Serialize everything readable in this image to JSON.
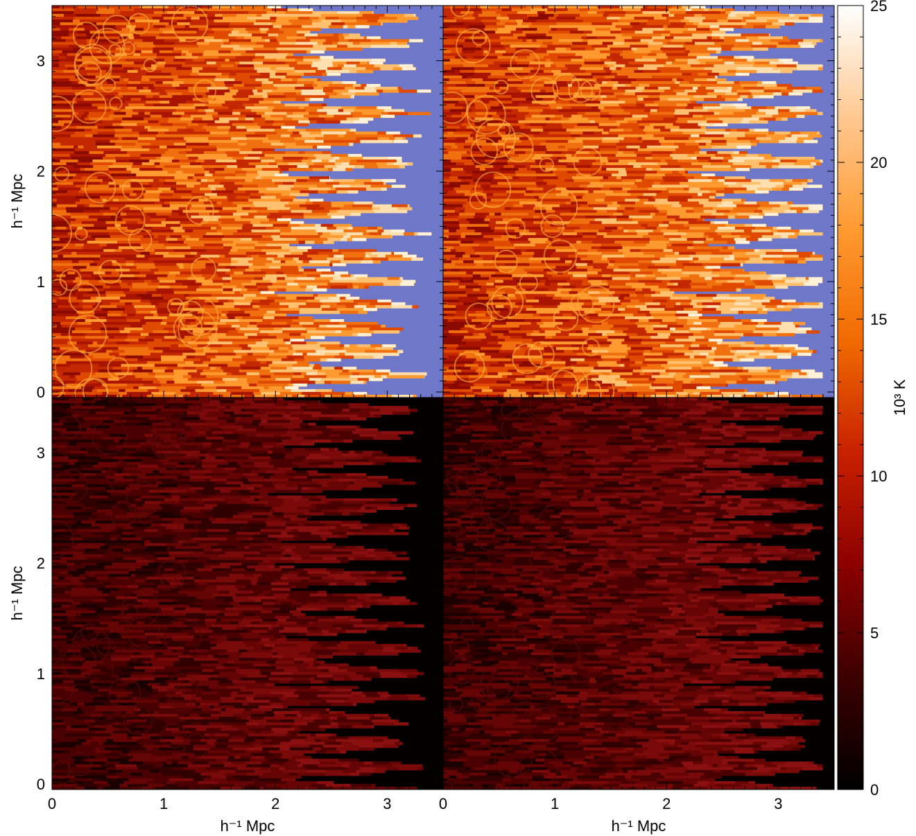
{
  "chart_data": {
    "type": "heatmap",
    "layout": "2x2 panel grid with shared colorbar",
    "panels": [
      {
        "id": "top-left",
        "row": 0,
        "col": 0,
        "colormap": "hot-with-blue-background",
        "xlim": [
          0,
          3.5
        ],
        "ylim": [
          -0.05,
          3.5
        ],
        "xticks_labeled": false,
        "yticks": [
          0,
          1,
          2,
          3
        ]
      },
      {
        "id": "top-right",
        "row": 0,
        "col": 1,
        "colormap": "hot-with-blue-background",
        "xlim": [
          0,
          3.5
        ],
        "ylim": [
          -0.05,
          3.5
        ],
        "xticks_labeled": false,
        "yticks_labeled": false
      },
      {
        "id": "bottom-left",
        "row": 1,
        "col": 0,
        "colormap": "hot",
        "xlim": [
          0,
          3.5
        ],
        "ylim": [
          -0.05,
          3.5
        ],
        "xticks": [
          0,
          1,
          2,
          3
        ],
        "yticks": [
          0,
          1,
          2,
          3
        ]
      },
      {
        "id": "bottom-right",
        "row": 1,
        "col": 1,
        "colormap": "hot",
        "xlim": [
          0,
          3.5
        ],
        "ylim": [
          -0.05,
          3.5
        ],
        "xticks": [
          0,
          1,
          2,
          3
        ],
        "yticks_labeled": false
      }
    ],
    "xlabel": "h⁻¹ Mpc",
    "ylabel": "h⁻¹ Mpc",
    "y_tick_labels": [
      "0",
      "1",
      "2",
      "3"
    ],
    "x_tick_labels": [
      "0",
      "1",
      "2",
      "3"
    ],
    "colorbar": {
      "label": "10³ K",
      "range": [
        0,
        25
      ],
      "ticks": [
        0,
        5,
        10,
        15,
        20,
        25
      ],
      "colors": [
        "#000000",
        "#3c0000",
        "#8c0000",
        "#c82000",
        "#f06a00",
        "#ff9a30",
        "#ffc890",
        "#ffffff"
      ]
    },
    "background_color_top": "#6f78c8",
    "background_color_bottom": "#050000"
  }
}
